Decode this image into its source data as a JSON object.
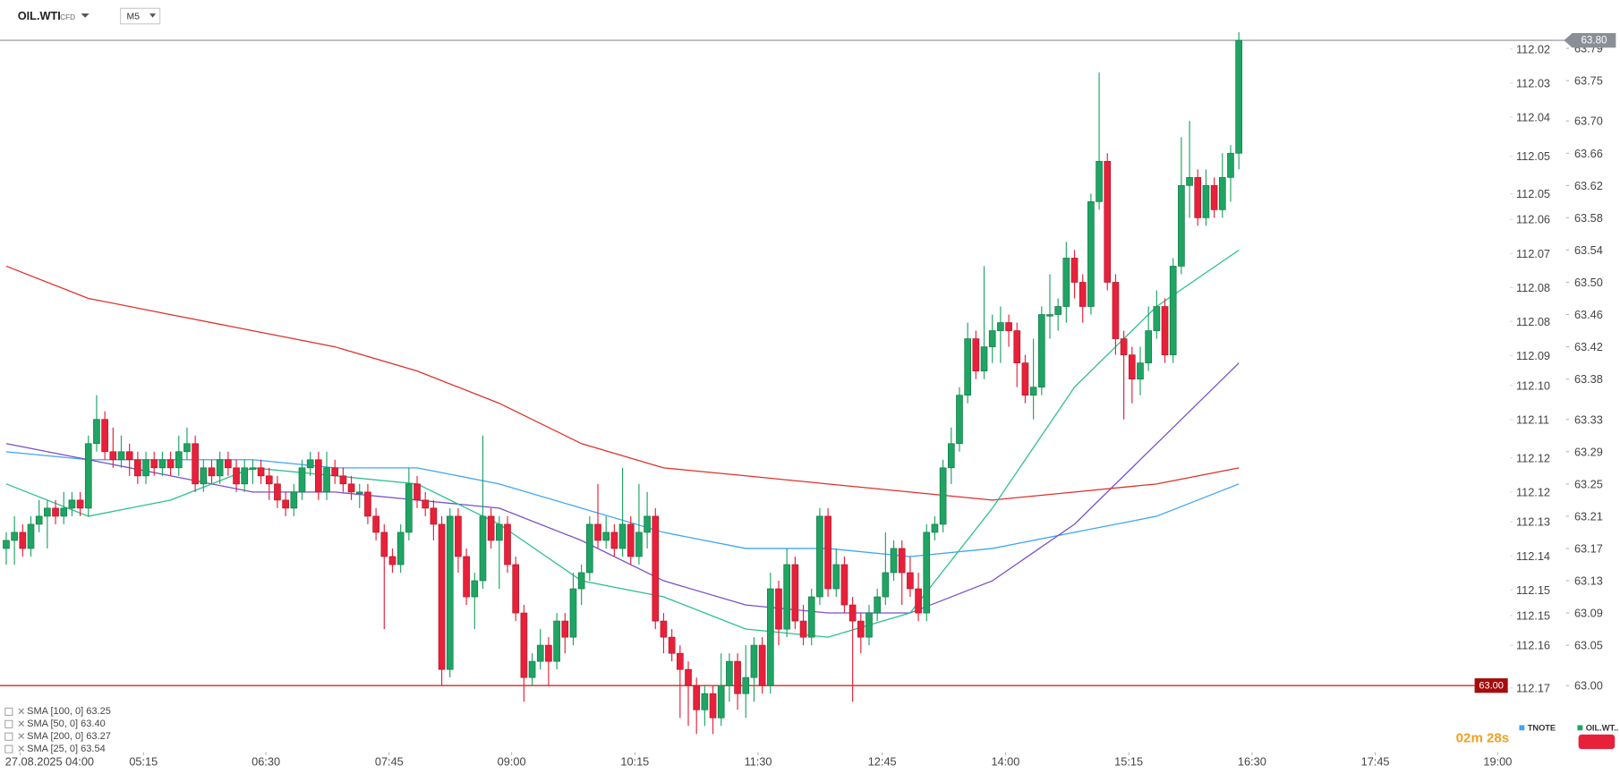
{
  "header": {
    "symbol": "OIL.WTI",
    "symbol_type": "CFD",
    "interval": "M5"
  },
  "chart_data": {
    "type": "candlestick",
    "up_color": "#1fa463",
    "down_color": "#e8213a",
    "xlim": [
      -0.758,
      188.8
    ],
    "xticks": [
      {
        "value": 1.7,
        "label": "27.08.2025 04:00"
      },
      {
        "value": 16.7,
        "label": "05:15"
      },
      {
        "value": 31.6,
        "label": "06:30"
      },
      {
        "value": 46.6,
        "label": "07:45"
      },
      {
        "value": 61.5,
        "label": "09:00"
      },
      {
        "value": 76.5,
        "label": "10:15"
      },
      {
        "value": 91.5,
        "label": "11:30"
      },
      {
        "value": 106.6,
        "label": "12:45"
      },
      {
        "value": 121.6,
        "label": "14:00"
      },
      {
        "value": 136.6,
        "label": "15:15"
      },
      {
        "value": 151.6,
        "label": "16:30"
      },
      {
        "value": 166.6,
        "label": "17:45"
      },
      {
        "value": 181.5,
        "label": "19:00"
      }
    ],
    "ylim": [
      62.92,
      63.85
    ],
    "yticks": [
      {
        "value": 63.79,
        "label": "63.79"
      },
      {
        "value": 63.75,
        "label": "63.75"
      },
      {
        "value": 63.7,
        "label": "63.70"
      },
      {
        "value": 63.66,
        "label": "63.66"
      },
      {
        "value": 63.62,
        "label": "63.62"
      },
      {
        "value": 63.58,
        "label": "63.58"
      },
      {
        "value": 63.54,
        "label": "63.54"
      },
      {
        "value": 63.5,
        "label": "63.50"
      },
      {
        "value": 63.46,
        "label": "63.46"
      },
      {
        "value": 63.42,
        "label": "63.42"
      },
      {
        "value": 63.38,
        "label": "63.38"
      },
      {
        "value": 63.33,
        "label": "63.33"
      },
      {
        "value": 63.29,
        "label": "63.29"
      },
      {
        "value": 63.25,
        "label": "63.25"
      },
      {
        "value": 63.21,
        "label": "63.21"
      },
      {
        "value": 63.17,
        "label": "63.17"
      },
      {
        "value": 63.13,
        "label": "63.13"
      },
      {
        "value": 63.09,
        "label": "63.09"
      },
      {
        "value": 63.05,
        "label": "63.05"
      },
      {
        "value": 63,
        "label": "63.00"
      }
    ],
    "y2lim": [
      112.0085,
      112.1846
    ],
    "y2_inverted": true,
    "y2ticks": [
      {
        "value": 112.02,
        "label": "112.02"
      },
      {
        "value": 112.028,
        "label": "112.03"
      },
      {
        "value": 112.036,
        "label": "112.04"
      },
      {
        "value": 112.0452,
        "label": "112.05"
      },
      {
        "value": 112.054,
        "label": "112.05"
      },
      {
        "value": 112.06,
        "label": "112.06"
      },
      {
        "value": 112.068,
        "label": "112.07"
      },
      {
        "value": 112.076,
        "label": "112.08"
      },
      {
        "value": 112.084,
        "label": "112.08"
      },
      {
        "value": 112.092,
        "label": "112.09"
      },
      {
        "value": 112.099,
        "label": "112.10"
      },
      {
        "value": 112.107,
        "label": "112.11"
      },
      {
        "value": 112.116,
        "label": "112.12"
      },
      {
        "value": 112.124,
        "label": "112.12"
      },
      {
        "value": 112.131,
        "label": "112.13"
      },
      {
        "value": 112.139,
        "label": "112.14"
      },
      {
        "value": 112.147,
        "label": "112.15"
      },
      {
        "value": 112.153,
        "label": "112.15"
      },
      {
        "value": 112.16,
        "label": "112.16"
      },
      {
        "value": 112.17,
        "label": "112.17"
      }
    ],
    "current_price": {
      "value": 63.8,
      "label": "63.80"
    },
    "level_line": {
      "value": 63,
      "label": "63.00"
    },
    "ohlc": [
      [
        63.17,
        63.19,
        63.15,
        63.18
      ],
      [
        63.18,
        63.21,
        63.15,
        63.19
      ],
      [
        63.19,
        63.2,
        63.16,
        63.17
      ],
      [
        63.17,
        63.21,
        63.16,
        63.2
      ],
      [
        63.2,
        63.23,
        63.19,
        63.21
      ],
      [
        63.21,
        63.23,
        63.17,
        63.22
      ],
      [
        63.22,
        63.23,
        63.2,
        63.21
      ],
      [
        63.21,
        63.24,
        63.2,
        63.22
      ],
      [
        63.22,
        63.24,
        63.21,
        63.23
      ],
      [
        63.23,
        63.24,
        63.21,
        63.22
      ],
      [
        63.22,
        63.31,
        63.21,
        63.3
      ],
      [
        63.3,
        63.36,
        63.29,
        63.33
      ],
      [
        63.33,
        63.34,
        63.28,
        63.29
      ],
      [
        63.29,
        63.32,
        63.27,
        63.28
      ],
      [
        63.28,
        63.31,
        63.27,
        63.29
      ],
      [
        63.29,
        63.3,
        63.26,
        63.28
      ],
      [
        63.28,
        63.29,
        63.25,
        63.26
      ],
      [
        63.26,
        63.29,
        63.25,
        63.28
      ],
      [
        63.28,
        63.29,
        63.26,
        63.27
      ],
      [
        63.27,
        63.29,
        63.26,
        63.28
      ],
      [
        63.28,
        63.29,
        63.26,
        63.27
      ],
      [
        63.27,
        63.31,
        63.26,
        63.29
      ],
      [
        63.29,
        63.32,
        63.28,
        63.3
      ],
      [
        63.3,
        63.31,
        63.24,
        63.25
      ],
      [
        63.25,
        63.28,
        63.24,
        63.27
      ],
      [
        63.27,
        63.28,
        63.25,
        63.26
      ],
      [
        63.26,
        63.29,
        63.25,
        63.28
      ],
      [
        63.28,
        63.29,
        63.26,
        63.27
      ],
      [
        63.27,
        63.28,
        63.24,
        63.25
      ],
      [
        63.25,
        63.28,
        63.24,
        63.27
      ],
      [
        63.27,
        63.28,
        63.25,
        63.27
      ],
      [
        63.27,
        63.28,
        63.25,
        63.26
      ],
      [
        63.26,
        63.27,
        63.23,
        63.25
      ],
      [
        63.25,
        63.26,
        63.22,
        63.23
      ],
      [
        63.23,
        63.24,
        63.21,
        63.22
      ],
      [
        63.22,
        63.25,
        63.21,
        63.24
      ],
      [
        63.24,
        63.28,
        63.23,
        63.27
      ],
      [
        63.27,
        63.29,
        63.26,
        63.28
      ],
      [
        63.28,
        63.29,
        63.23,
        63.24
      ],
      [
        63.24,
        63.29,
        63.23,
        63.27
      ],
      [
        63.27,
        63.28,
        63.25,
        63.26
      ],
      [
        63.26,
        63.27,
        63.24,
        63.25
      ],
      [
        63.25,
        63.26,
        63.23,
        63.24
      ],
      [
        63.24,
        63.25,
        63.22,
        63.24
      ],
      [
        63.24,
        63.25,
        63.2,
        63.21
      ],
      [
        63.21,
        63.22,
        63.18,
        63.19
      ],
      [
        63.19,
        63.2,
        63.07,
        63.16
      ],
      [
        63.16,
        63.17,
        63.14,
        63.15
      ],
      [
        63.15,
        63.2,
        63.14,
        63.19
      ],
      [
        63.19,
        63.27,
        63.18,
        63.25
      ],
      [
        63.25,
        63.26,
        63.22,
        63.23
      ],
      [
        63.23,
        63.24,
        63.21,
        63.22
      ],
      [
        63.22,
        63.23,
        63.18,
        63.2
      ],
      [
        63.2,
        63.21,
        63.0,
        63.02
      ],
      [
        63.02,
        63.22,
        63.01,
        63.21
      ],
      [
        63.21,
        63.22,
        63.14,
        63.16
      ],
      [
        63.16,
        63.17,
        63.1,
        63.11
      ],
      [
        63.11,
        63.14,
        63.07,
        63.13
      ],
      [
        63.13,
        63.31,
        63.12,
        63.21
      ],
      [
        63.21,
        63.22,
        63.17,
        63.18
      ],
      [
        63.18,
        63.21,
        63.12,
        63.2
      ],
      [
        63.2,
        63.21,
        63.14,
        63.15
      ],
      [
        63.15,
        63.16,
        63.08,
        63.09
      ],
      [
        63.09,
        63.1,
        62.98,
        63.01
      ],
      [
        63.01,
        63.04,
        63.0,
        63.03
      ],
      [
        63.03,
        63.07,
        63.02,
        63.05
      ],
      [
        63.05,
        63.06,
        63.0,
        63.03
      ],
      [
        63.03,
        63.09,
        63.02,
        63.08
      ],
      [
        63.08,
        63.09,
        63.04,
        63.06
      ],
      [
        63.06,
        63.14,
        63.05,
        63.12
      ],
      [
        63.12,
        63.15,
        63.1,
        63.14
      ],
      [
        63.14,
        63.21,
        63.13,
        63.2
      ],
      [
        63.2,
        63.25,
        63.17,
        63.18
      ],
      [
        63.18,
        63.21,
        63.17,
        63.19
      ],
      [
        63.19,
        63.2,
        63.16,
        63.17
      ],
      [
        63.17,
        63.27,
        63.16,
        63.2
      ],
      [
        63.2,
        63.21,
        63.15,
        63.16
      ],
      [
        63.16,
        63.25,
        63.15,
        63.19
      ],
      [
        63.19,
        63.24,
        63.17,
        63.21
      ],
      [
        63.21,
        63.22,
        63.07,
        63.08
      ],
      [
        63.08,
        63.09,
        63.04,
        63.06
      ],
      [
        63.06,
        63.07,
        63.03,
        63.04
      ],
      [
        63.04,
        63.05,
        62.96,
        63.02
      ],
      [
        63.02,
        63.03,
        62.95,
        63.0
      ],
      [
        63.0,
        63.01,
        62.94,
        62.97
      ],
      [
        62.97,
        63.0,
        62.95,
        62.99
      ],
      [
        62.99,
        63.0,
        62.94,
        62.96
      ],
      [
        62.96,
        63.04,
        62.95,
        63.0
      ],
      [
        63.0,
        63.04,
        62.98,
        63.03
      ],
      [
        63.03,
        63.04,
        62.97,
        62.99
      ],
      [
        62.99,
        63.05,
        62.96,
        63.01
      ],
      [
        63.01,
        63.06,
        62.98,
        63.05
      ],
      [
        63.05,
        63.06,
        62.99,
        63.0
      ],
      [
        63.0,
        63.14,
        62.99,
        63.12
      ],
      [
        63.12,
        63.13,
        63.05,
        63.07
      ],
      [
        63.07,
        63.17,
        63.06,
        63.15
      ],
      [
        63.15,
        63.16,
        63.07,
        63.08
      ],
      [
        63.08,
        63.1,
        63.05,
        63.06
      ],
      [
        63.06,
        63.12,
        63.05,
        63.11
      ],
      [
        63.11,
        63.22,
        63.1,
        63.21
      ],
      [
        63.21,
        63.22,
        63.11,
        63.12
      ],
      [
        63.12,
        63.17,
        63.11,
        63.15
      ],
      [
        63.15,
        63.16,
        63.09,
        63.1
      ],
      [
        63.1,
        63.11,
        62.98,
        63.08
      ],
      [
        63.08,
        63.09,
        63.04,
        63.06
      ],
      [
        63.06,
        63.1,
        63.05,
        63.09
      ],
      [
        63.09,
        63.12,
        63.08,
        63.11
      ],
      [
        63.11,
        63.19,
        63.1,
        63.14
      ],
      [
        63.14,
        63.18,
        63.13,
        63.17
      ],
      [
        63.17,
        63.18,
        63.1,
        63.14
      ],
      [
        63.14,
        63.16,
        63.11,
        63.12
      ],
      [
        63.12,
        63.14,
        63.08,
        63.09
      ],
      [
        63.09,
        63.2,
        63.08,
        63.19
      ],
      [
        63.19,
        63.21,
        63.18,
        63.2
      ],
      [
        63.2,
        63.28,
        63.19,
        63.27
      ],
      [
        63.27,
        63.32,
        63.25,
        63.3
      ],
      [
        63.3,
        63.37,
        63.29,
        63.36
      ],
      [
        63.36,
        63.45,
        63.35,
        63.43
      ],
      [
        63.43,
        63.44,
        63.38,
        63.39
      ],
      [
        63.39,
        63.52,
        63.38,
        63.42
      ],
      [
        63.42,
        63.46,
        63.4,
        63.44
      ],
      [
        63.44,
        63.47,
        63.4,
        63.45
      ],
      [
        63.45,
        63.46,
        63.42,
        63.44
      ],
      [
        63.44,
        63.45,
        63.37,
        63.4
      ],
      [
        63.4,
        63.41,
        63.35,
        63.36
      ],
      [
        63.36,
        63.43,
        63.33,
        63.37
      ],
      [
        63.37,
        63.47,
        63.36,
        63.46
      ],
      [
        63.46,
        63.51,
        63.43,
        63.46
      ],
      [
        63.46,
        63.48,
        63.44,
        63.47
      ],
      [
        63.47,
        63.55,
        63.45,
        63.53
      ],
      [
        63.53,
        63.54,
        63.48,
        63.5
      ],
      [
        63.5,
        63.51,
        63.45,
        63.47
      ],
      [
        63.47,
        63.61,
        63.46,
        63.6
      ],
      [
        63.6,
        63.76,
        63.59,
        63.65
      ],
      [
        63.65,
        63.66,
        63.49,
        63.5
      ],
      [
        63.5,
        63.51,
        63.41,
        63.43
      ],
      [
        63.43,
        63.44,
        63.33,
        63.41
      ],
      [
        63.41,
        63.42,
        63.35,
        63.38
      ],
      [
        63.38,
        63.42,
        63.36,
        63.4
      ],
      [
        63.4,
        63.47,
        63.39,
        63.44
      ],
      [
        63.44,
        63.49,
        63.43,
        63.47
      ],
      [
        63.47,
        63.48,
        63.4,
        63.41
      ],
      [
        63.41,
        63.53,
        63.4,
        63.52
      ],
      [
        63.52,
        63.68,
        63.51,
        63.62
      ],
      [
        63.62,
        63.7,
        63.58,
        63.63
      ],
      [
        63.63,
        63.64,
        63.57,
        63.58
      ],
      [
        63.58,
        63.64,
        63.57,
        63.62
      ],
      [
        63.62,
        63.63,
        63.58,
        63.59
      ],
      [
        63.59,
        63.66,
        63.58,
        63.63
      ],
      [
        63.63,
        63.67,
        63.6,
        63.66
      ],
      [
        63.66,
        63.81,
        63.64,
        63.8
      ]
    ],
    "series": [
      {
        "name": "SMA [100, 0] 63.25",
        "color": "#3da5f4",
        "x": [
          0,
          10,
          20,
          30,
          40,
          50,
          60,
          70,
          80,
          90,
          100,
          110,
          120,
          130,
          140,
          150
        ],
        "values": [
          63.29,
          63.28,
          63.28,
          63.28,
          63.27,
          63.27,
          63.25,
          63.22,
          63.19,
          63.17,
          63.17,
          63.16,
          63.17,
          63.19,
          63.21,
          63.25
        ]
      },
      {
        "name": "SMA [50, 0] 63.40",
        "color": "#7a4fc8",
        "x": [
          0,
          10,
          20,
          30,
          40,
          50,
          60,
          70,
          80,
          90,
          100,
          110,
          120,
          130,
          140,
          150
        ],
        "values": [
          63.3,
          63.28,
          63.26,
          63.24,
          63.24,
          63.23,
          63.22,
          63.18,
          63.13,
          63.1,
          63.09,
          63.09,
          63.13,
          63.2,
          63.3,
          63.4
        ]
      },
      {
        "name": "SMA [200, 0] 63.27",
        "color": "#e0302a",
        "x": [
          0,
          10,
          20,
          30,
          40,
          50,
          60,
          70,
          80,
          90,
          100,
          110,
          120,
          130,
          140,
          150
        ],
        "values": [
          63.52,
          63.48,
          63.46,
          63.44,
          63.42,
          63.39,
          63.35,
          63.3,
          63.27,
          63.26,
          63.25,
          63.24,
          63.23,
          63.24,
          63.25,
          63.27
        ]
      },
      {
        "name": "SMA [25, 0] 63.54",
        "color": "#2bc08b",
        "x": [
          0,
          10,
          20,
          30,
          40,
          50,
          60,
          70,
          80,
          90,
          100,
          110,
          120,
          130,
          140,
          150
        ],
        "values": [
          63.25,
          63.21,
          63.23,
          63.27,
          63.26,
          63.25,
          63.2,
          63.13,
          63.11,
          63.07,
          63.06,
          63.09,
          63.22,
          63.37,
          63.47,
          63.54
        ]
      }
    ],
    "timer": "02m 28s",
    "overlay_legend": [
      {
        "name": "TNOTE",
        "color": "#3da5f4"
      },
      {
        "name": "OIL.WT..",
        "color": "#1fa463"
      }
    ]
  }
}
